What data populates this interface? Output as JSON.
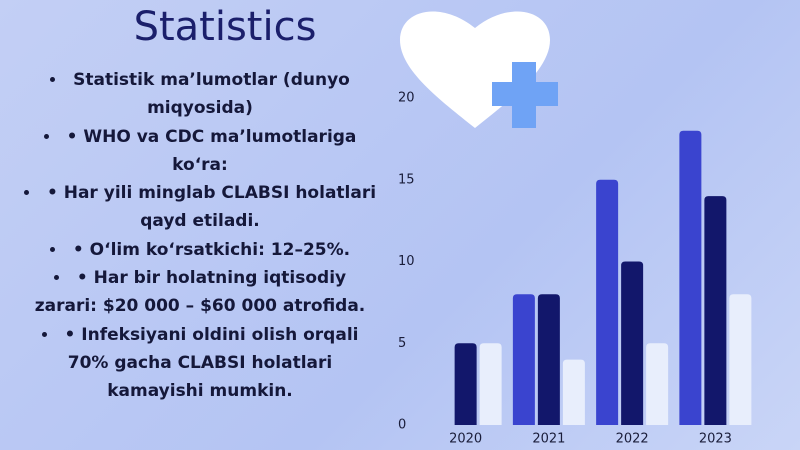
{
  "header": {
    "title": "Statistics"
  },
  "bullets": [
    "Statistik ma’lumotlar (dunyo miqyosida)",
    "• WHO va CDC ma’lumotlariga ko‘ra:",
    "• Har yili minglab CLABSI holatlari qayd etiladi.",
    "• O‘lim ko‘rsatkichi: 12–25%.",
    "• Har bir holatning iqtisodiy zarari: $20 000 – $60 000 atrofida.",
    "• Infeksiyani oldini olish orqali 70% gacha CLABSI holatlari kamayishi mumkin."
  ],
  "chart_data": {
    "type": "bar",
    "categories": [
      "2020",
      "2021",
      "2022",
      "2023"
    ],
    "series": [
      {
        "color": "#3a44cf",
        "values": [
          null,
          8,
          15,
          18
        ]
      },
      {
        "color": "#12176b",
        "values": [
          5,
          8,
          10,
          14
        ]
      },
      {
        "color": "#e8eefc",
        "values": [
          5,
          4,
          5,
          8
        ]
      }
    ],
    "ylim": [
      0,
      20
    ],
    "yticks": [
      0,
      5,
      10,
      15,
      20
    ],
    "grid": false
  }
}
